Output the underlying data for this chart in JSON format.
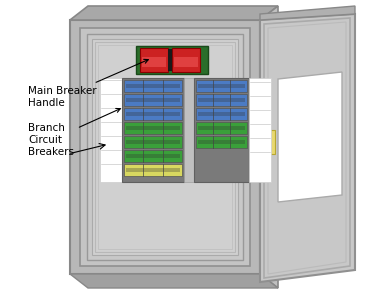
{
  "bg_color": "#ffffff",
  "blue_color": "#4b7bc4",
  "green_color": "#3aa03a",
  "yellow_color": "#d8d860",
  "label_main_breaker": "Main Breaker\nHandle",
  "label_branch": "Branch\nCircuit\nBreakers"
}
